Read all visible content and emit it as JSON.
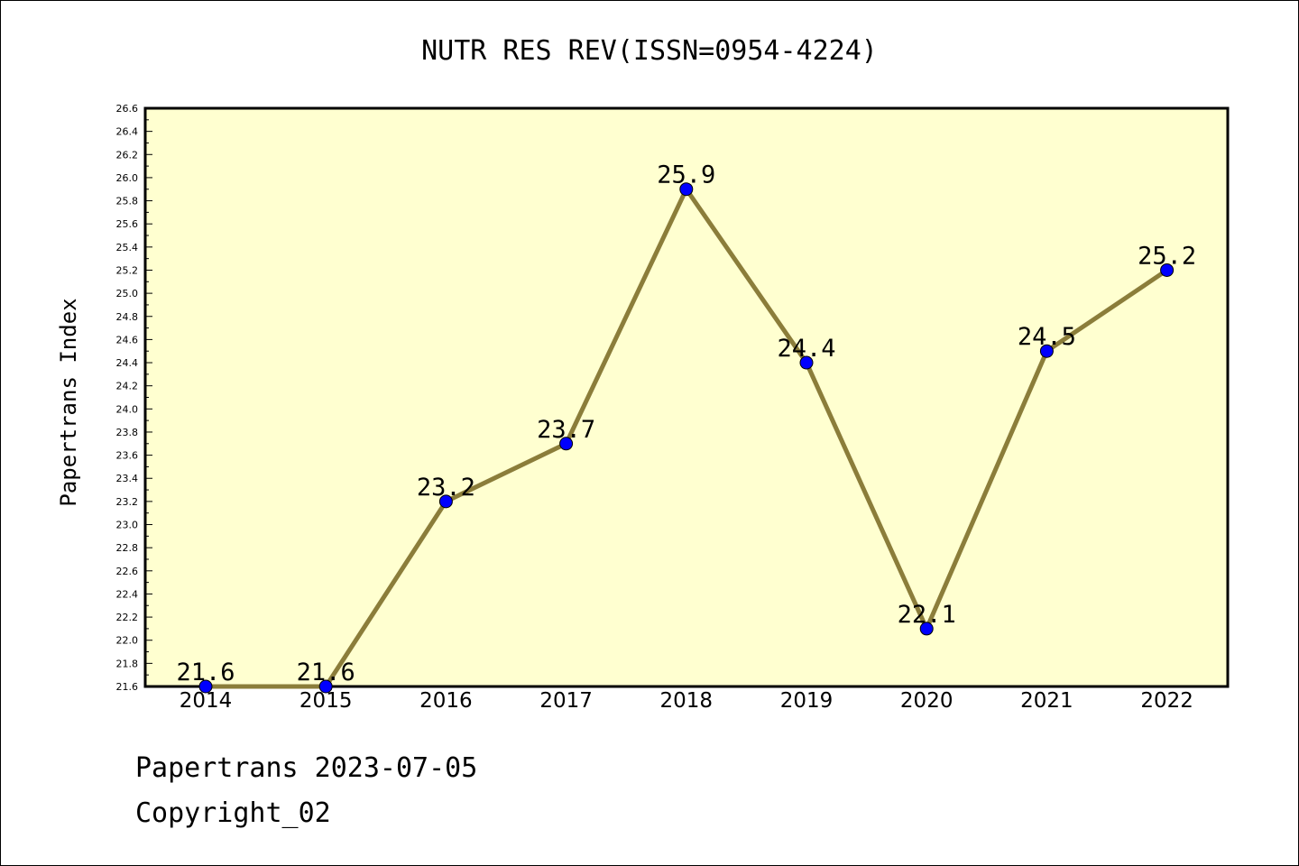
{
  "chart_data": {
    "type": "line",
    "title": "NUTR RES REV(ISSN=0954-4224)",
    "ylabel": "Papertrans Index",
    "xlabel": "",
    "categories": [
      "2014",
      "2015",
      "2016",
      "2017",
      "2018",
      "2019",
      "2020",
      "2021",
      "2022"
    ],
    "values": [
      21.6,
      21.6,
      23.2,
      23.7,
      25.9,
      24.4,
      22.1,
      24.5,
      25.2
    ],
    "data_labels": [
      "21.6",
      "21.6",
      "23.2",
      "23.7",
      "25.9",
      "24.4",
      "22.1",
      "24.5",
      "25.2"
    ],
    "ylim": [
      21.6,
      26.6
    ],
    "yticks": [
      "21.6",
      "21.8",
      "22.0",
      "22.2",
      "22.4",
      "22.6",
      "22.8",
      "23.0",
      "23.2",
      "23.4",
      "23.6",
      "23.8",
      "24.0",
      "24.2",
      "24.4",
      "24.6",
      "24.8",
      "25.0",
      "25.2",
      "25.4",
      "25.6",
      "25.8",
      "26.0",
      "26.2",
      "26.4",
      "26.6"
    ],
    "grid": false,
    "legend": "none",
    "colors": {
      "plot_background": "#ffffd0",
      "line": "#8b7d3a",
      "marker": "#0000ff"
    }
  },
  "footer": {
    "line1": "Papertrans 2023-07-05",
    "line2": "Copyright_02"
  }
}
